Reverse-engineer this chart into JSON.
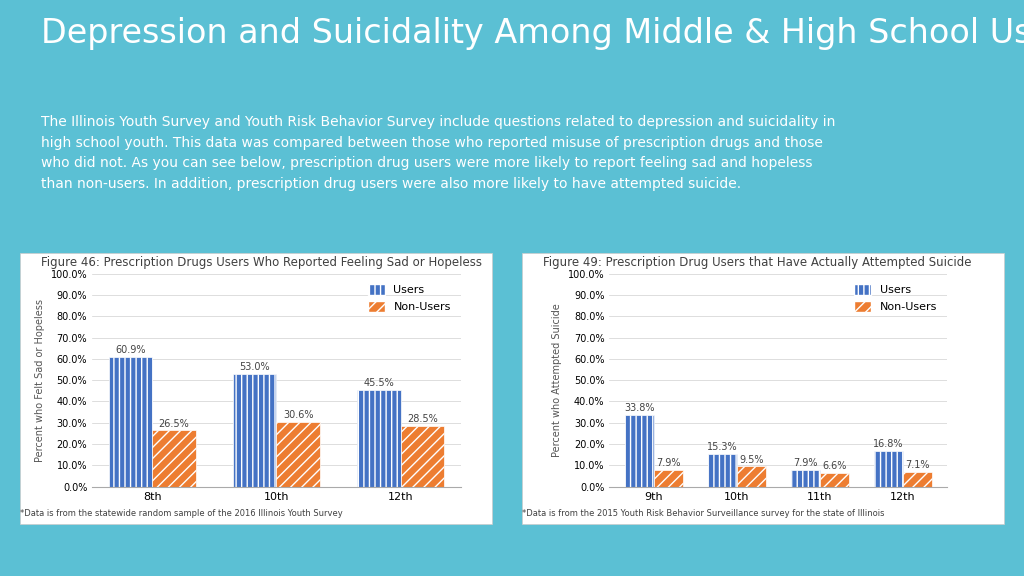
{
  "title": "Depression and Suicidality Among Middle & High School Users",
  "description": "The Illinois Youth Survey and Youth Risk Behavior Survey include questions related to depression and suicidality in\nhigh school youth. This data was compared between those who reported misuse of prescription drugs and those\nwho did not. As you can see below, prescription drug users were more likely to report feeling sad and hopeless\nthan non-users. In addition, prescription drug users were also more likely to have attempted suicide.",
  "background_color": "#5bc0d4",
  "chart_bg": "#ffffff",
  "fig1_title": "Figure 46: Prescription Drugs Users Who Reported Feeling Sad or Hopeless",
  "fig1_ylabel": "Percent who Felt Sad or Hopeless",
  "fig1_categories": [
    "8th",
    "10th",
    "12th"
  ],
  "fig1_users": [
    60.9,
    53.0,
    45.5
  ],
  "fig1_nonusers": [
    26.5,
    30.6,
    28.5
  ],
  "fig1_footnote": "*Data is from the statewide random sample of the 2016 Illinois Youth Survey",
  "fig2_title": "Figure 49: Prescription Drug Users that Have Actually Attempted Suicide",
  "fig2_ylabel": "Percent who Attempted Suicide",
  "fig2_categories": [
    "9th",
    "10th",
    "11th",
    "12th"
  ],
  "fig2_users": [
    33.8,
    15.3,
    7.9,
    16.8
  ],
  "fig2_nonusers": [
    7.9,
    9.5,
    6.6,
    7.1
  ],
  "fig2_footnote": "*Data is from the 2015 Youth Risk Behavior Surveillance survey for the state of Illinois",
  "user_color": "#4472c4",
  "nonuser_color": "#ed7d31",
  "user_hatch": "|||",
  "nonuser_hatch": "///",
  "ylim": [
    0,
    100
  ],
  "yticks": [
    0,
    10,
    20,
    30,
    40,
    50,
    60,
    70,
    80,
    90,
    100
  ],
  "ytick_labels": [
    "0.0%",
    "10.0%",
    "20.0%",
    "30.0%",
    "40.0%",
    "50.0%",
    "60.0%",
    "70.0%",
    "80.0%",
    "90.0%",
    "100.0%"
  ],
  "title_fontsize": 24,
  "desc_fontsize": 10,
  "chart_title_fontsize": 8.5,
  "axis_label_fontsize": 7,
  "bar_label_fontsize": 7,
  "legend_fontsize": 8,
  "footnote_fontsize": 6
}
